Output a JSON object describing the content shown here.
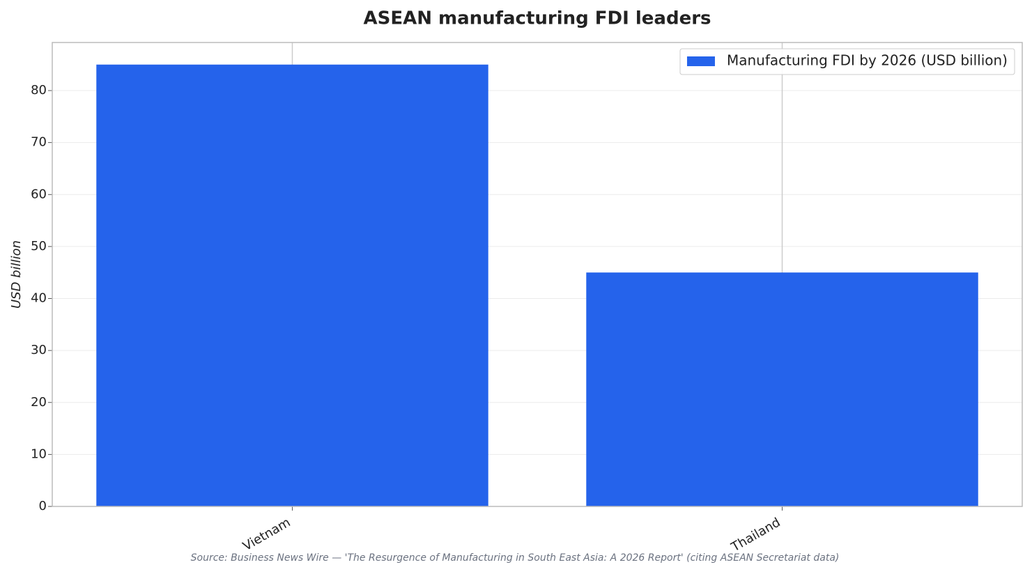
{
  "chart_data": {
    "type": "bar",
    "title": "ASEAN manufacturing FDI leaders",
    "y_label": "USD billion",
    "categories": [
      "Vietnam",
      "Thailand"
    ],
    "series": [
      {
        "name": "Manufacturing FDI by 2026 (USD billion)",
        "color": "#2563eb",
        "values": [
          85,
          45
        ]
      }
    ],
    "ylim": [
      0,
      89.25
    ],
    "yticks": [
      0,
      10,
      20,
      30,
      40,
      50,
      60,
      70,
      80
    ],
    "grid": true,
    "legend": "upper right",
    "source": "Source: Business News Wire — 'The Resurgence of Manufacturing in South East Asia: A 2026 Report' (citing ASEAN Secretariat data)"
  }
}
